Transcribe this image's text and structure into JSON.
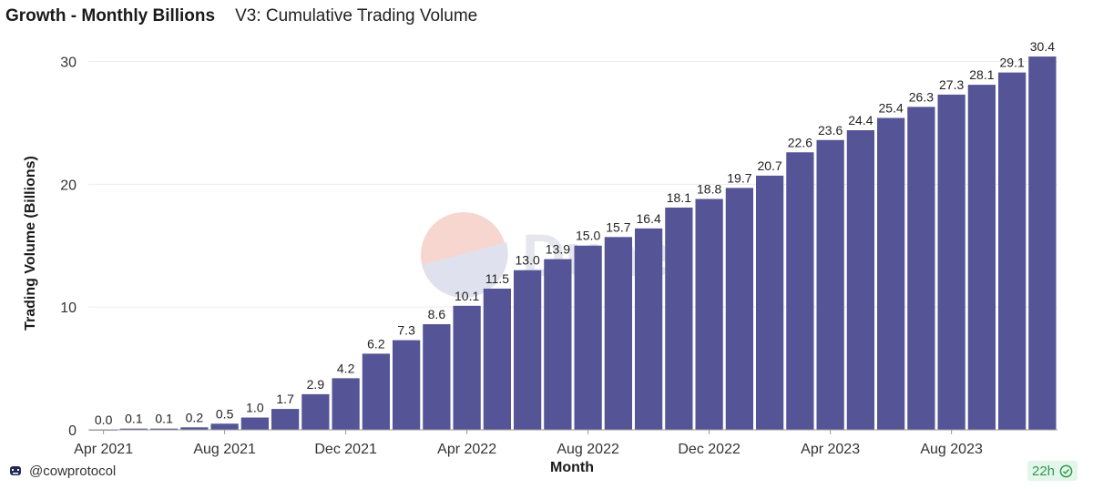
{
  "header": {
    "title": "Growth - Monthly Billions",
    "subtitle": "V3: Cumulative Trading Volume"
  },
  "footer": {
    "author": "@cowprotocol",
    "author_icon": "cow-icon",
    "refresh_badge": "22h",
    "badge_icon": "check-circle-icon"
  },
  "watermark": {
    "text": "Dune"
  },
  "colors": {
    "bar": "#545496",
    "grid": "#ececec",
    "axis": "#999999",
    "badge_bg": "#e4f6ea",
    "badge_text": "#2e9a4f"
  },
  "chart_data": {
    "type": "bar",
    "xlabel": "Month",
    "ylabel": "Trading Volume (Billions)",
    "ylim": [
      0,
      31
    ],
    "yticks": [
      0,
      10,
      20,
      30
    ],
    "grid": true,
    "categories": [
      "2021-04",
      "2021-05",
      "2021-06",
      "2021-07",
      "2021-08",
      "2021-09",
      "2021-10",
      "2021-11",
      "2021-12",
      "2022-01",
      "2022-02",
      "2022-03",
      "2022-04",
      "2022-05",
      "2022-06",
      "2022-07",
      "2022-08",
      "2022-09",
      "2022-10",
      "2022-11",
      "2022-12",
      "2023-01",
      "2023-02",
      "2023-03",
      "2023-04",
      "2023-05",
      "2023-06",
      "2023-07",
      "2023-08",
      "2023-09",
      "2023-10",
      "2023-11"
    ],
    "values": [
      0.0,
      0.1,
      0.1,
      0.2,
      0.5,
      1.0,
      1.7,
      2.9,
      4.2,
      6.2,
      7.3,
      8.6,
      10.1,
      11.5,
      13.0,
      13.9,
      15.0,
      15.7,
      16.4,
      18.1,
      18.8,
      19.7,
      20.7,
      22.6,
      23.6,
      24.4,
      25.4,
      26.3,
      27.3,
      28.1,
      29.1,
      30.4
    ],
    "data_labels": [
      "0.0",
      "0.1",
      "0.1",
      "0.2",
      "0.5",
      "1.0",
      "1.7",
      "2.9",
      "4.2",
      "6.2",
      "7.3",
      "8.6",
      "10.1",
      "11.5",
      "13.0",
      "13.9",
      "15.0",
      "15.7",
      "16.4",
      "18.1",
      "18.8",
      "19.7",
      "20.7",
      "22.6",
      "23.6",
      "24.4",
      "25.4",
      "26.3",
      "27.3",
      "28.1",
      "29.1",
      "30.4"
    ],
    "xtick_labels": [
      {
        "category": "2021-04",
        "label": "Apr 2021"
      },
      {
        "category": "2021-08",
        "label": "Aug 2021"
      },
      {
        "category": "2021-12",
        "label": "Dec 2021"
      },
      {
        "category": "2022-04",
        "label": "Apr 2022"
      },
      {
        "category": "2022-08",
        "label": "Aug 2022"
      },
      {
        "category": "2022-12",
        "label": "Dec 2022"
      },
      {
        "category": "2023-04",
        "label": "Apr 2023"
      },
      {
        "category": "2023-08",
        "label": "Aug 2023"
      }
    ]
  }
}
